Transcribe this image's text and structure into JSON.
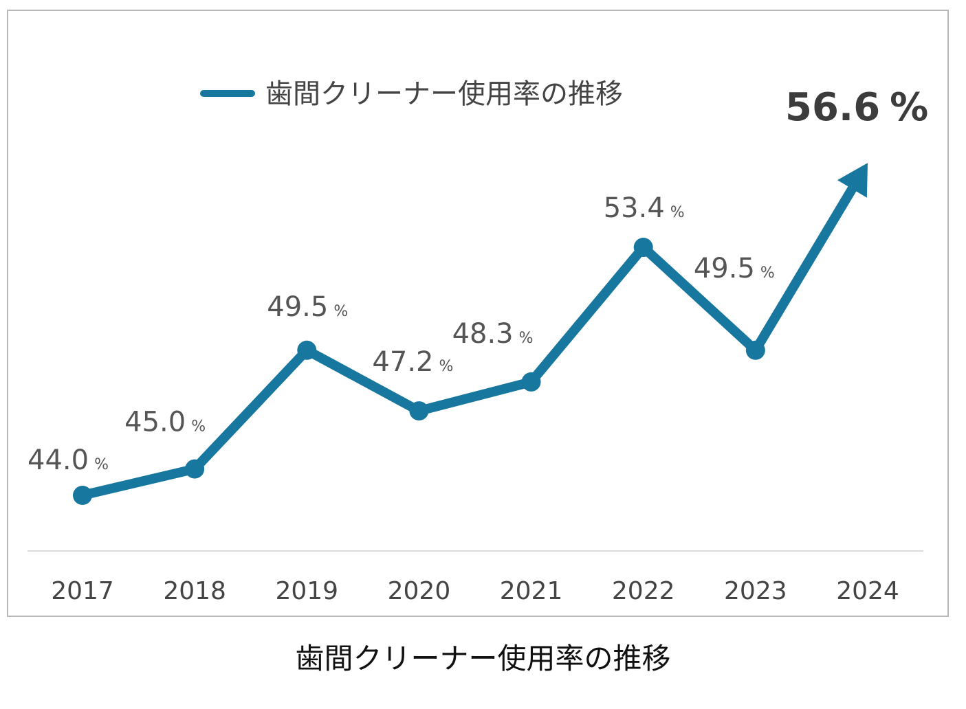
{
  "chart_data": {
    "type": "line",
    "title": "",
    "xlabel": "",
    "ylabel": "",
    "categories": [
      "2017",
      "2018",
      "2019",
      "2020",
      "2021",
      "2022",
      "2023",
      "2024"
    ],
    "series": [
      {
        "name": "歯間クリーナー使用率の推移",
        "values": [
          44.0,
          45.0,
          49.5,
          47.2,
          48.3,
          53.4,
          49.5,
          56.6
        ],
        "labels": [
          "44.0",
          "45.0",
          "49.5",
          "47.2",
          "48.3",
          "53.4",
          "49.5",
          "56.6"
        ],
        "unit": "%",
        "color": "#17779f"
      }
    ],
    "highlight_last": true,
    "legend": "top-center",
    "grid": false
  },
  "caption": "歯間クリーナー使用率の推移"
}
